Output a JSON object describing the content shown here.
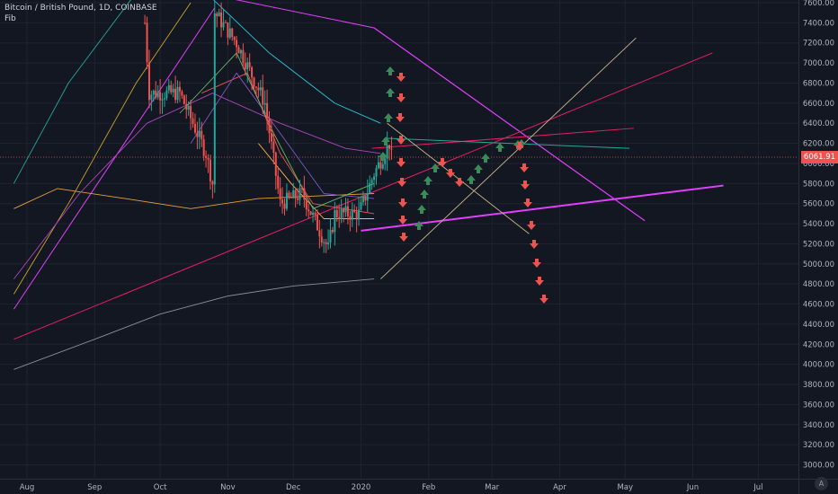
{
  "legend": {
    "symbol": "Bitcoin / British Pound, 1D, COINBASE",
    "indicator": "Fib"
  },
  "current_price": "6061.91",
  "colors": {
    "background": "#131722",
    "up": "#26a69a",
    "down": "#ef5350",
    "arrow_up": "#3c8a5a",
    "arrow_down": "#ef5350",
    "trendline_magenta": "#e040fb",
    "trendline_pink": "#e91e63",
    "trendline_tan": "#c8b68a",
    "trendline_teal": "#26a69a"
  },
  "chart_data": {
    "type": "line",
    "title": "Bitcoin / British Pound, 1D, COINBASE",
    "xlabel": "",
    "ylabel": "",
    "ylim": [
      2900,
      7850
    ],
    "x_ticks": [
      "Aug",
      "Sep",
      "Oct",
      "Nov",
      "Dec",
      "2020",
      "Feb",
      "Mar",
      "Apr",
      "May",
      "Jun",
      "Jul"
    ],
    "y_ticks": [
      "7600.00",
      "7400.00",
      "7200.00",
      "7000.00",
      "6800.00",
      "6600.00",
      "6400.00",
      "6200.00",
      "6000.00",
      "5800.00",
      "5600.00",
      "5400.00",
      "5200.00",
      "5000.00",
      "4800.00",
      "4600.00",
      "4400.00",
      "4200.00",
      "4000.00",
      "3800.00",
      "3600.00",
      "3400.00",
      "3200.00",
      "3000.00"
    ],
    "price_key_points": [
      {
        "date": "2019-09-24",
        "price": 7400
      },
      {
        "date": "2019-09-26",
        "price": 6700
      },
      {
        "date": "2019-10-10",
        "price": 6700
      },
      {
        "date": "2019-10-22",
        "price": 6100
      },
      {
        "date": "2019-10-25",
        "price": 5800
      },
      {
        "date": "2019-10-26",
        "price": 7500
      },
      {
        "date": "2019-11-05",
        "price": 7200
      },
      {
        "date": "2019-11-18",
        "price": 6600
      },
      {
        "date": "2019-11-25",
        "price": 5600
      },
      {
        "date": "2019-12-05",
        "price": 5700
      },
      {
        "date": "2019-12-17",
        "price": 5150
      },
      {
        "date": "2019-12-20",
        "price": 5500
      },
      {
        "date": "2019-12-31",
        "price": 5500
      },
      {
        "date": "2020-01-07",
        "price": 5900
      },
      {
        "date": "2020-01-14",
        "price": 6200
      },
      {
        "date": "2020-01-15",
        "price": 6061.91
      }
    ],
    "last_price": 6061.91
  }
}
